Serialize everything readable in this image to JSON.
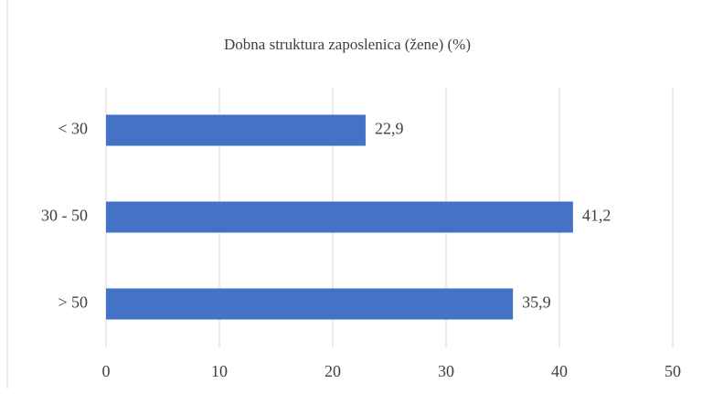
{
  "chart_data": {
    "type": "bar",
    "orientation": "horizontal",
    "title": "Dobna struktura zaposlenica (žene) (%)",
    "categories": [
      "< 30",
      "30 - 50",
      "> 50"
    ],
    "values": [
      22.9,
      41.2,
      35.9
    ],
    "value_labels": [
      "22,9",
      "41,2",
      "35,9"
    ],
    "color": "#4472c4",
    "xlim": [
      0,
      50
    ],
    "xticks": [
      0,
      10,
      20,
      30,
      40,
      50
    ],
    "grid": true
  }
}
